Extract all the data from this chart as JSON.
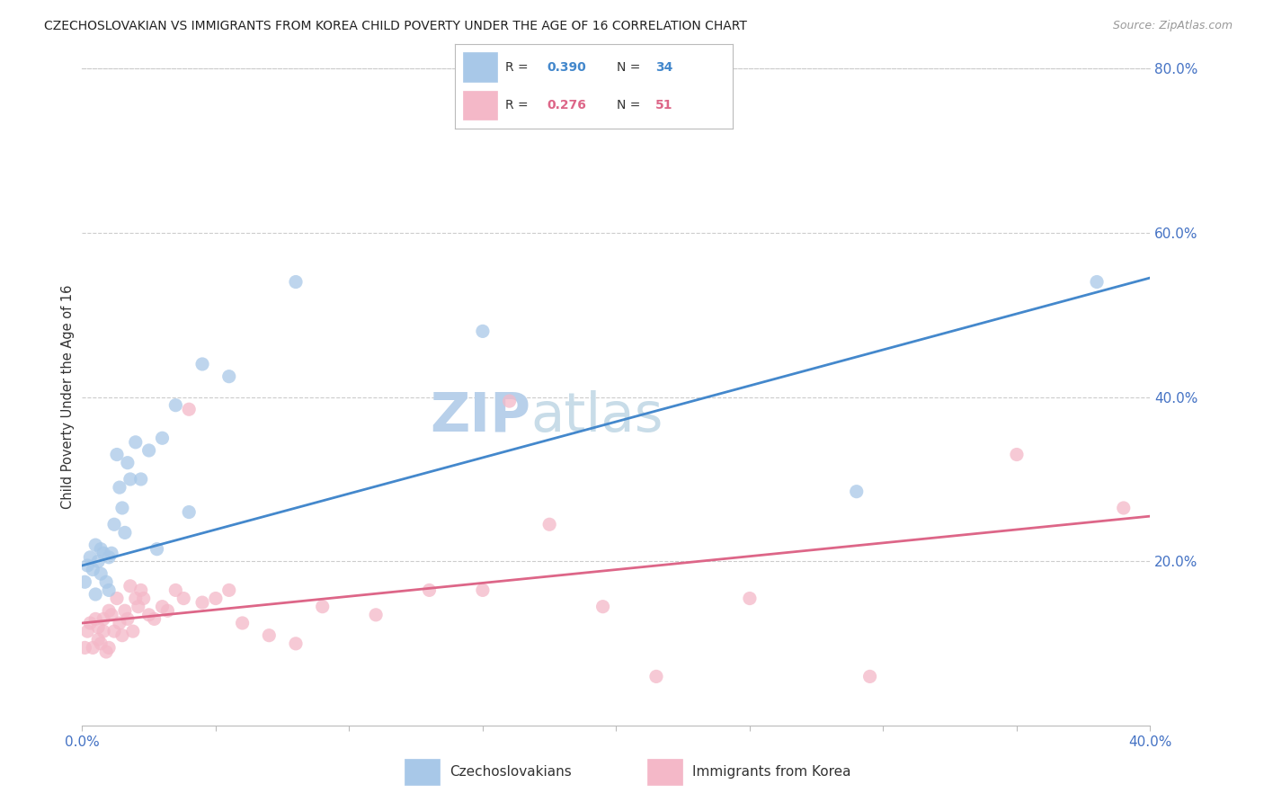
{
  "title": "CZECHOSLOVAKIAN VS IMMIGRANTS FROM KOREA CHILD POVERTY UNDER THE AGE OF 16 CORRELATION CHART",
  "source": "Source: ZipAtlas.com",
  "ylabel_label": "Child Poverty Under the Age of 16",
  "x_min": 0.0,
  "x_max": 0.4,
  "y_min": 0.0,
  "y_max": 0.8,
  "legend1_R": "0.390",
  "legend1_N": "34",
  "legend2_R": "0.276",
  "legend2_N": "51",
  "color_czech": "#a8c8e8",
  "color_korea": "#f4b8c8",
  "color_line_czech": "#4488cc",
  "color_line_korea": "#dd6688",
  "watermark_color": "#dce8f5",
  "background_color": "#ffffff",
  "grid_color": "#cccccc",
  "czech_x": [
    0.001,
    0.002,
    0.003,
    0.004,
    0.005,
    0.005,
    0.006,
    0.007,
    0.007,
    0.008,
    0.009,
    0.01,
    0.01,
    0.011,
    0.012,
    0.013,
    0.014,
    0.015,
    0.016,
    0.017,
    0.018,
    0.02,
    0.022,
    0.025,
    0.028,
    0.03,
    0.035,
    0.04,
    0.045,
    0.055,
    0.08,
    0.15,
    0.29,
    0.38
  ],
  "czech_y": [
    0.175,
    0.195,
    0.205,
    0.19,
    0.22,
    0.16,
    0.2,
    0.185,
    0.215,
    0.21,
    0.175,
    0.205,
    0.165,
    0.21,
    0.245,
    0.33,
    0.29,
    0.265,
    0.235,
    0.32,
    0.3,
    0.345,
    0.3,
    0.335,
    0.215,
    0.35,
    0.39,
    0.26,
    0.44,
    0.425,
    0.54,
    0.48,
    0.285,
    0.54
  ],
  "korea_x": [
    0.001,
    0.002,
    0.003,
    0.004,
    0.005,
    0.006,
    0.006,
    0.007,
    0.008,
    0.008,
    0.009,
    0.01,
    0.01,
    0.011,
    0.012,
    0.013,
    0.014,
    0.015,
    0.016,
    0.017,
    0.018,
    0.019,
    0.02,
    0.021,
    0.022,
    0.023,
    0.025,
    0.027,
    0.03,
    0.032,
    0.035,
    0.038,
    0.04,
    0.045,
    0.05,
    0.055,
    0.06,
    0.07,
    0.08,
    0.09,
    0.11,
    0.13,
    0.15,
    0.16,
    0.175,
    0.195,
    0.215,
    0.25,
    0.295,
    0.35,
    0.39
  ],
  "korea_y": [
    0.095,
    0.115,
    0.125,
    0.095,
    0.13,
    0.12,
    0.105,
    0.1,
    0.115,
    0.13,
    0.09,
    0.095,
    0.14,
    0.135,
    0.115,
    0.155,
    0.125,
    0.11,
    0.14,
    0.13,
    0.17,
    0.115,
    0.155,
    0.145,
    0.165,
    0.155,
    0.135,
    0.13,
    0.145,
    0.14,
    0.165,
    0.155,
    0.385,
    0.15,
    0.155,
    0.165,
    0.125,
    0.11,
    0.1,
    0.145,
    0.135,
    0.165,
    0.165,
    0.395,
    0.245,
    0.145,
    0.06,
    0.155,
    0.06,
    0.33,
    0.265
  ],
  "line_czech_x0": 0.0,
  "line_czech_y0": 0.195,
  "line_czech_x1": 0.4,
  "line_czech_y1": 0.545,
  "line_korea_x0": 0.0,
  "line_korea_y0": 0.125,
  "line_korea_x1": 0.4,
  "line_korea_y1": 0.255
}
